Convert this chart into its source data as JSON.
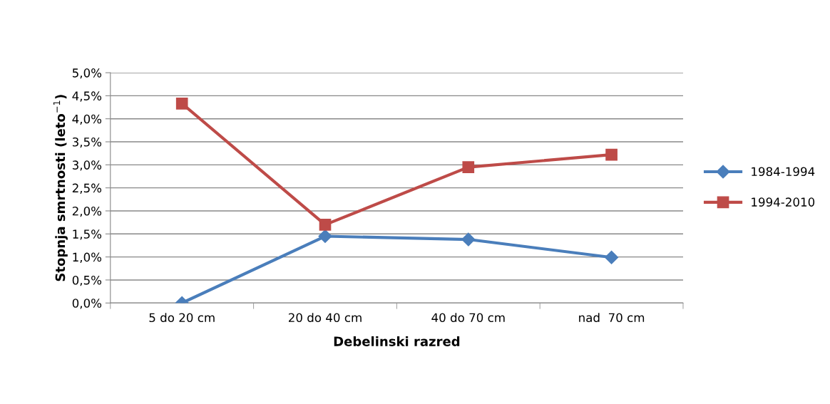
{
  "chart_data": {
    "type": "line",
    "xlabel": "Debelinski razred",
    "ylabel": "Stopnja smrtnosti (leto$^{−1}$)",
    "categories": [
      "5 do 20 cm",
      "20 do 40 cm",
      "40 do 70 cm",
      "nad  70 cm"
    ],
    "series": [
      {
        "name": "1984-1994",
        "color": "#4a7ebb",
        "marker": "diamond",
        "values": [
          0.0,
          1.45,
          1.38,
          0.99
        ]
      },
      {
        "name": "1994-2010",
        "color": "#be4b48",
        "marker": "square",
        "values": [
          4.33,
          1.7,
          2.95,
          3.22
        ]
      }
    ],
    "ylim": [
      0,
      5
    ],
    "yticks": [
      {
        "value": 0,
        "label": "0,0%"
      },
      {
        "value": 0.5,
        "label": "0,5%"
      },
      {
        "value": 1,
        "label": "1,0%"
      },
      {
        "value": 1.5,
        "label": "1,5%"
      },
      {
        "value": 2,
        "label": "2,0%"
      },
      {
        "value": 2.5,
        "label": "2,5%"
      },
      {
        "value": 3,
        "label": "3,0%"
      },
      {
        "value": 3.5,
        "label": "3,5%"
      },
      {
        "value": 4,
        "label": "4,0%"
      },
      {
        "value": 4.5,
        "label": "4,5%"
      },
      {
        "value": 5,
        "label": "5,0%"
      }
    ],
    "grid": "y",
    "legend": "right",
    "line_style": "solid"
  }
}
